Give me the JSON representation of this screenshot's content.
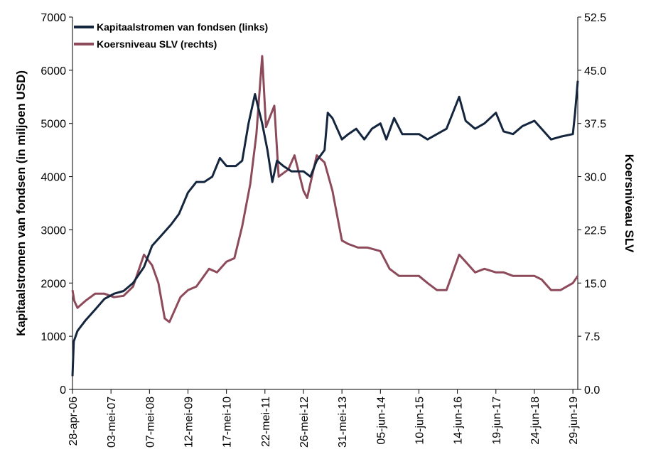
{
  "chart_data": {
    "type": "line",
    "title": "",
    "colors": {
      "flows": "#14263d",
      "price": "#8c4a5a"
    },
    "y_left": {
      "label": "Kapitaalstromen van fondsen (in miljoen USD)",
      "range": [
        0,
        7000
      ],
      "tick_values": [
        0,
        1000,
        2000,
        3000,
        4000,
        5000,
        6000,
        7000
      ],
      "tick_labels": [
        "0",
        "1000",
        "2000",
        "3000",
        "4000",
        "5000",
        "6000",
        "7000"
      ]
    },
    "y_right": {
      "label": "Koersniveau SLV",
      "range": [
        0,
        52.5
      ],
      "tick_values": [
        0,
        7.5,
        15,
        22.5,
        30,
        37.5,
        45,
        52.5
      ],
      "tick_labels": [
        "0.0",
        "7.5",
        "15.0",
        "22.5",
        "30.0",
        "37.5",
        "45.0",
        "52.5"
      ]
    },
    "x_axis": {
      "range": [
        "2006-04-28",
        "2019-08-15"
      ],
      "tick_dates": [
        "2006-04-28",
        "2007-05-03",
        "2008-05-07",
        "2009-05-12",
        "2010-05-17",
        "2011-05-22",
        "2012-05-26",
        "2013-05-31",
        "2014-06-05",
        "2015-06-10",
        "2016-06-14",
        "2017-06-19",
        "2018-06-24",
        "2019-06-29"
      ],
      "tick_labels": [
        "28-apr-06",
        "03-mei-07",
        "07-mei-08",
        "12-mei-09",
        "17-mei-10",
        "22-mei-11",
        "26-mei-12",
        "31-mei-13",
        "05-jun-14",
        "10-jun-15",
        "14-jun-16",
        "19-jun-17",
        "24-jun-18",
        "29-jun-19"
      ]
    },
    "legend": {
      "position": "top-left",
      "entries": [
        "Kapitaalstromen van fondsen (links)",
        "Koersniveau SLV (rechts)"
      ]
    },
    "series": [
      {
        "name": "Kapitaalstromen van fondsen (links)",
        "axis": "left",
        "x": [
          "2006-04-28",
          "2006-05-10",
          "2006-06-15",
          "2006-09-01",
          "2006-12-01",
          "2007-03-01",
          "2007-06-01",
          "2007-09-01",
          "2007-12-01",
          "2008-03-15",
          "2008-06-01",
          "2008-09-01",
          "2008-12-01",
          "2009-02-15",
          "2009-05-12",
          "2009-08-01",
          "2009-10-15",
          "2010-01-01",
          "2010-03-15",
          "2010-05-17",
          "2010-08-15",
          "2010-10-15",
          "2010-12-15",
          "2011-02-15",
          "2011-04-25",
          "2011-06-15",
          "2011-08-01",
          "2011-09-15",
          "2011-11-15",
          "2012-02-01",
          "2012-05-26",
          "2012-08-01",
          "2012-10-01",
          "2012-12-15",
          "2013-01-15",
          "2013-03-01",
          "2013-05-31",
          "2013-08-01",
          "2013-10-15",
          "2014-01-01",
          "2014-03-15",
          "2014-06-05",
          "2014-08-01",
          "2014-10-15",
          "2015-01-01",
          "2015-03-15",
          "2015-06-10",
          "2015-09-01",
          "2015-12-01",
          "2016-03-01",
          "2016-07-01",
          "2016-09-01",
          "2016-12-01",
          "2017-03-01",
          "2017-06-19",
          "2017-09-01",
          "2017-12-01",
          "2018-03-01",
          "2018-06-24",
          "2018-09-01",
          "2018-12-01",
          "2019-03-01",
          "2019-06-29",
          "2019-07-20",
          "2019-08-15"
        ],
        "values": [
          250,
          900,
          1100,
          1300,
          1500,
          1700,
          1800,
          1850,
          2000,
          2300,
          2700,
          2900,
          3100,
          3300,
          3700,
          3900,
          3900,
          4000,
          4350,
          4200,
          4200,
          4300,
          5000,
          5550,
          5000,
          4500,
          3900,
          4300,
          4200,
          4100,
          4100,
          4000,
          4300,
          4500,
          5200,
          5100,
          4700,
          4800,
          4900,
          4700,
          4900,
          5000,
          4700,
          5100,
          4800,
          4800,
          4800,
          4700,
          4800,
          4900,
          5500,
          5050,
          4900,
          5000,
          5200,
          4850,
          4800,
          4950,
          5050,
          4900,
          4700,
          4750,
          4800,
          5200,
          5800
        ]
      },
      {
        "name": "Koersniveau SLV (rechts)",
        "axis": "right",
        "x": [
          "2006-04-28",
          "2006-05-15",
          "2006-06-15",
          "2006-09-01",
          "2006-12-01",
          "2007-03-01",
          "2007-06-01",
          "2007-09-01",
          "2007-12-01",
          "2008-03-15",
          "2008-06-01",
          "2008-08-01",
          "2008-10-01",
          "2008-11-15",
          "2009-03-01",
          "2009-05-12",
          "2009-08-01",
          "2009-12-01",
          "2010-02-15",
          "2010-05-17",
          "2010-08-01",
          "2010-10-15",
          "2011-01-01",
          "2011-03-01",
          "2011-04-25",
          "2011-06-01",
          "2011-08-20",
          "2011-10-01",
          "2012-01-01",
          "2012-03-01",
          "2012-05-26",
          "2012-07-01",
          "2012-10-01",
          "2012-12-15",
          "2013-03-01",
          "2013-05-31",
          "2013-08-01",
          "2013-11-01",
          "2014-02-01",
          "2014-06-05",
          "2014-09-01",
          "2014-12-01",
          "2015-03-01",
          "2015-06-10",
          "2015-09-01",
          "2015-12-01",
          "2016-03-01",
          "2016-07-01",
          "2016-09-01",
          "2016-12-01",
          "2017-03-01",
          "2017-06-19",
          "2017-09-01",
          "2017-12-01",
          "2018-03-01",
          "2018-06-24",
          "2018-09-01",
          "2018-12-01",
          "2019-03-01",
          "2019-06-29",
          "2019-08-15"
        ],
        "values": [
          14,
          12.5,
          11.5,
          12.5,
          13.5,
          13.5,
          13,
          13.2,
          14.5,
          19,
          17.5,
          15,
          10,
          9.5,
          13,
          14,
          14.5,
          17,
          16.5,
          18,
          18.5,
          23,
          29,
          36,
          47,
          37,
          40,
          30,
          31,
          33,
          28,
          27,
          33,
          32,
          28,
          21,
          20.5,
          20,
          20,
          19.5,
          17,
          16,
          16,
          16,
          15,
          14,
          14,
          19,
          18,
          16.5,
          17,
          16.5,
          16.5,
          16,
          16,
          16,
          15.5,
          14,
          14,
          15,
          16
        ]
      }
    ]
  }
}
